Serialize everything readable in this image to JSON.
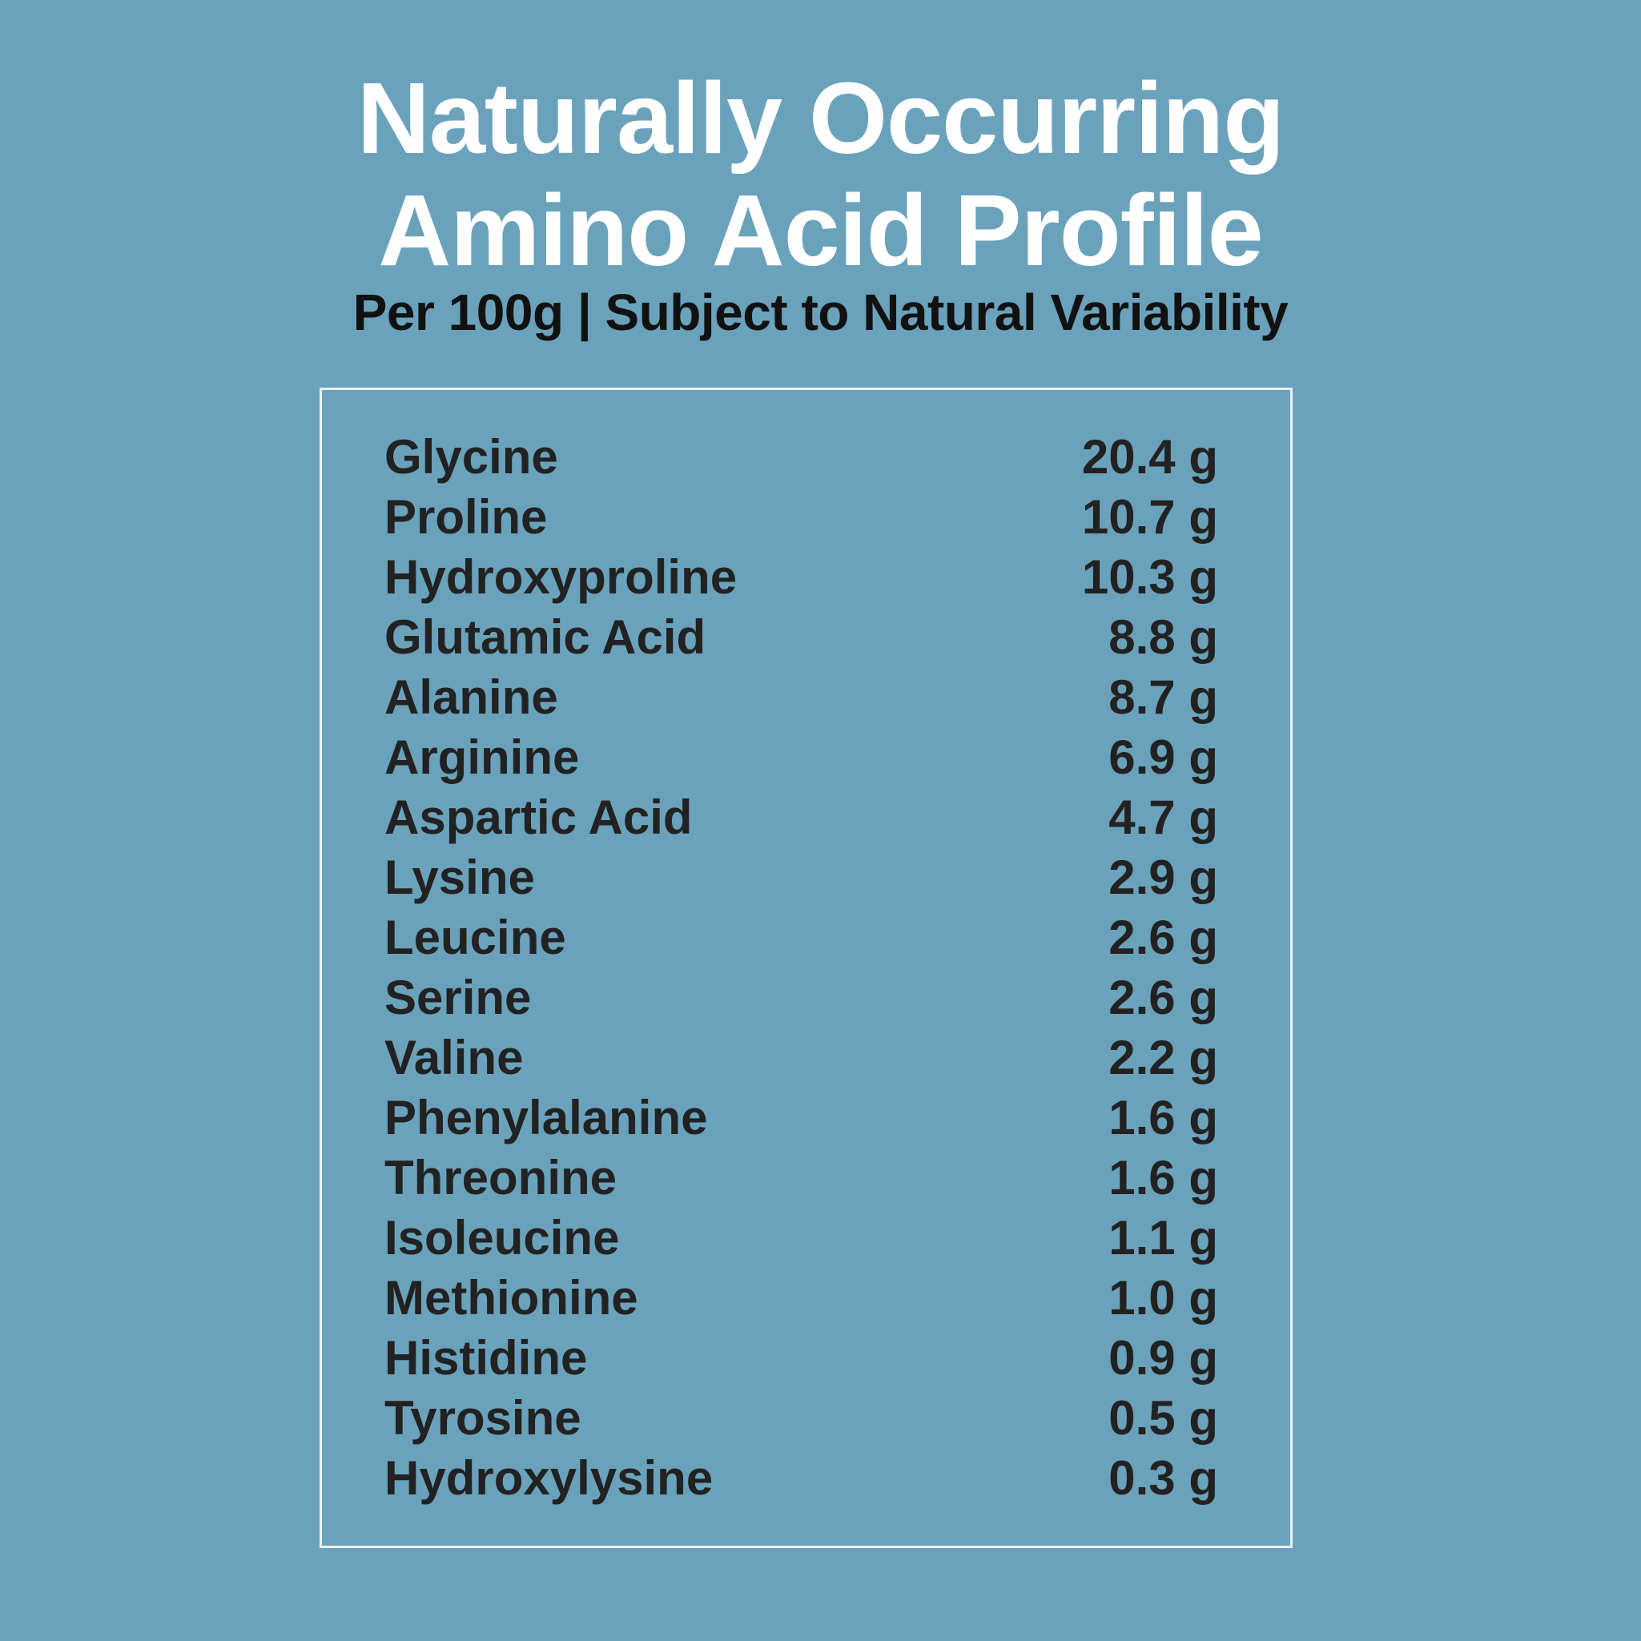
{
  "header": {
    "title_line1": "Naturally Occurring",
    "title_line2": "Amino Acid Profile",
    "subtitle": "Per 100g | Subject to Natural Variability"
  },
  "colors": {
    "background": "#6aa2bb",
    "title": "#ffffff",
    "text": "#222222",
    "border": "#e9f1f5"
  },
  "amino_acids": [
    {
      "name": "Glycine",
      "value": "20.4 g"
    },
    {
      "name": "Proline",
      "value": "10.7 g"
    },
    {
      "name": "Hydroxyproline",
      "value": "10.3 g"
    },
    {
      "name": "Glutamic Acid",
      "value": "8.8 g"
    },
    {
      "name": "Alanine",
      "value": "8.7 g"
    },
    {
      "name": "Arginine",
      "value": "6.9 g"
    },
    {
      "name": "Aspartic Acid",
      "value": "4.7 g"
    },
    {
      "name": "Lysine",
      "value": "2.9 g"
    },
    {
      "name": "Leucine",
      "value": "2.6 g"
    },
    {
      "name": "Serine",
      "value": "2.6 g"
    },
    {
      "name": "Valine",
      "value": "2.2 g"
    },
    {
      "name": "Phenylalanine",
      "value": "1.6 g"
    },
    {
      "name": "Threonine",
      "value": "1.6 g"
    },
    {
      "name": "Isoleucine",
      "value": "1.1 g"
    },
    {
      "name": "Methionine",
      "value": "1.0 g"
    },
    {
      "name": "Histidine",
      "value": "0.9 g"
    },
    {
      "name": "Tyrosine",
      "value": "0.5 g"
    },
    {
      "name": "Hydroxylysine",
      "value": "0.3 g"
    }
  ]
}
